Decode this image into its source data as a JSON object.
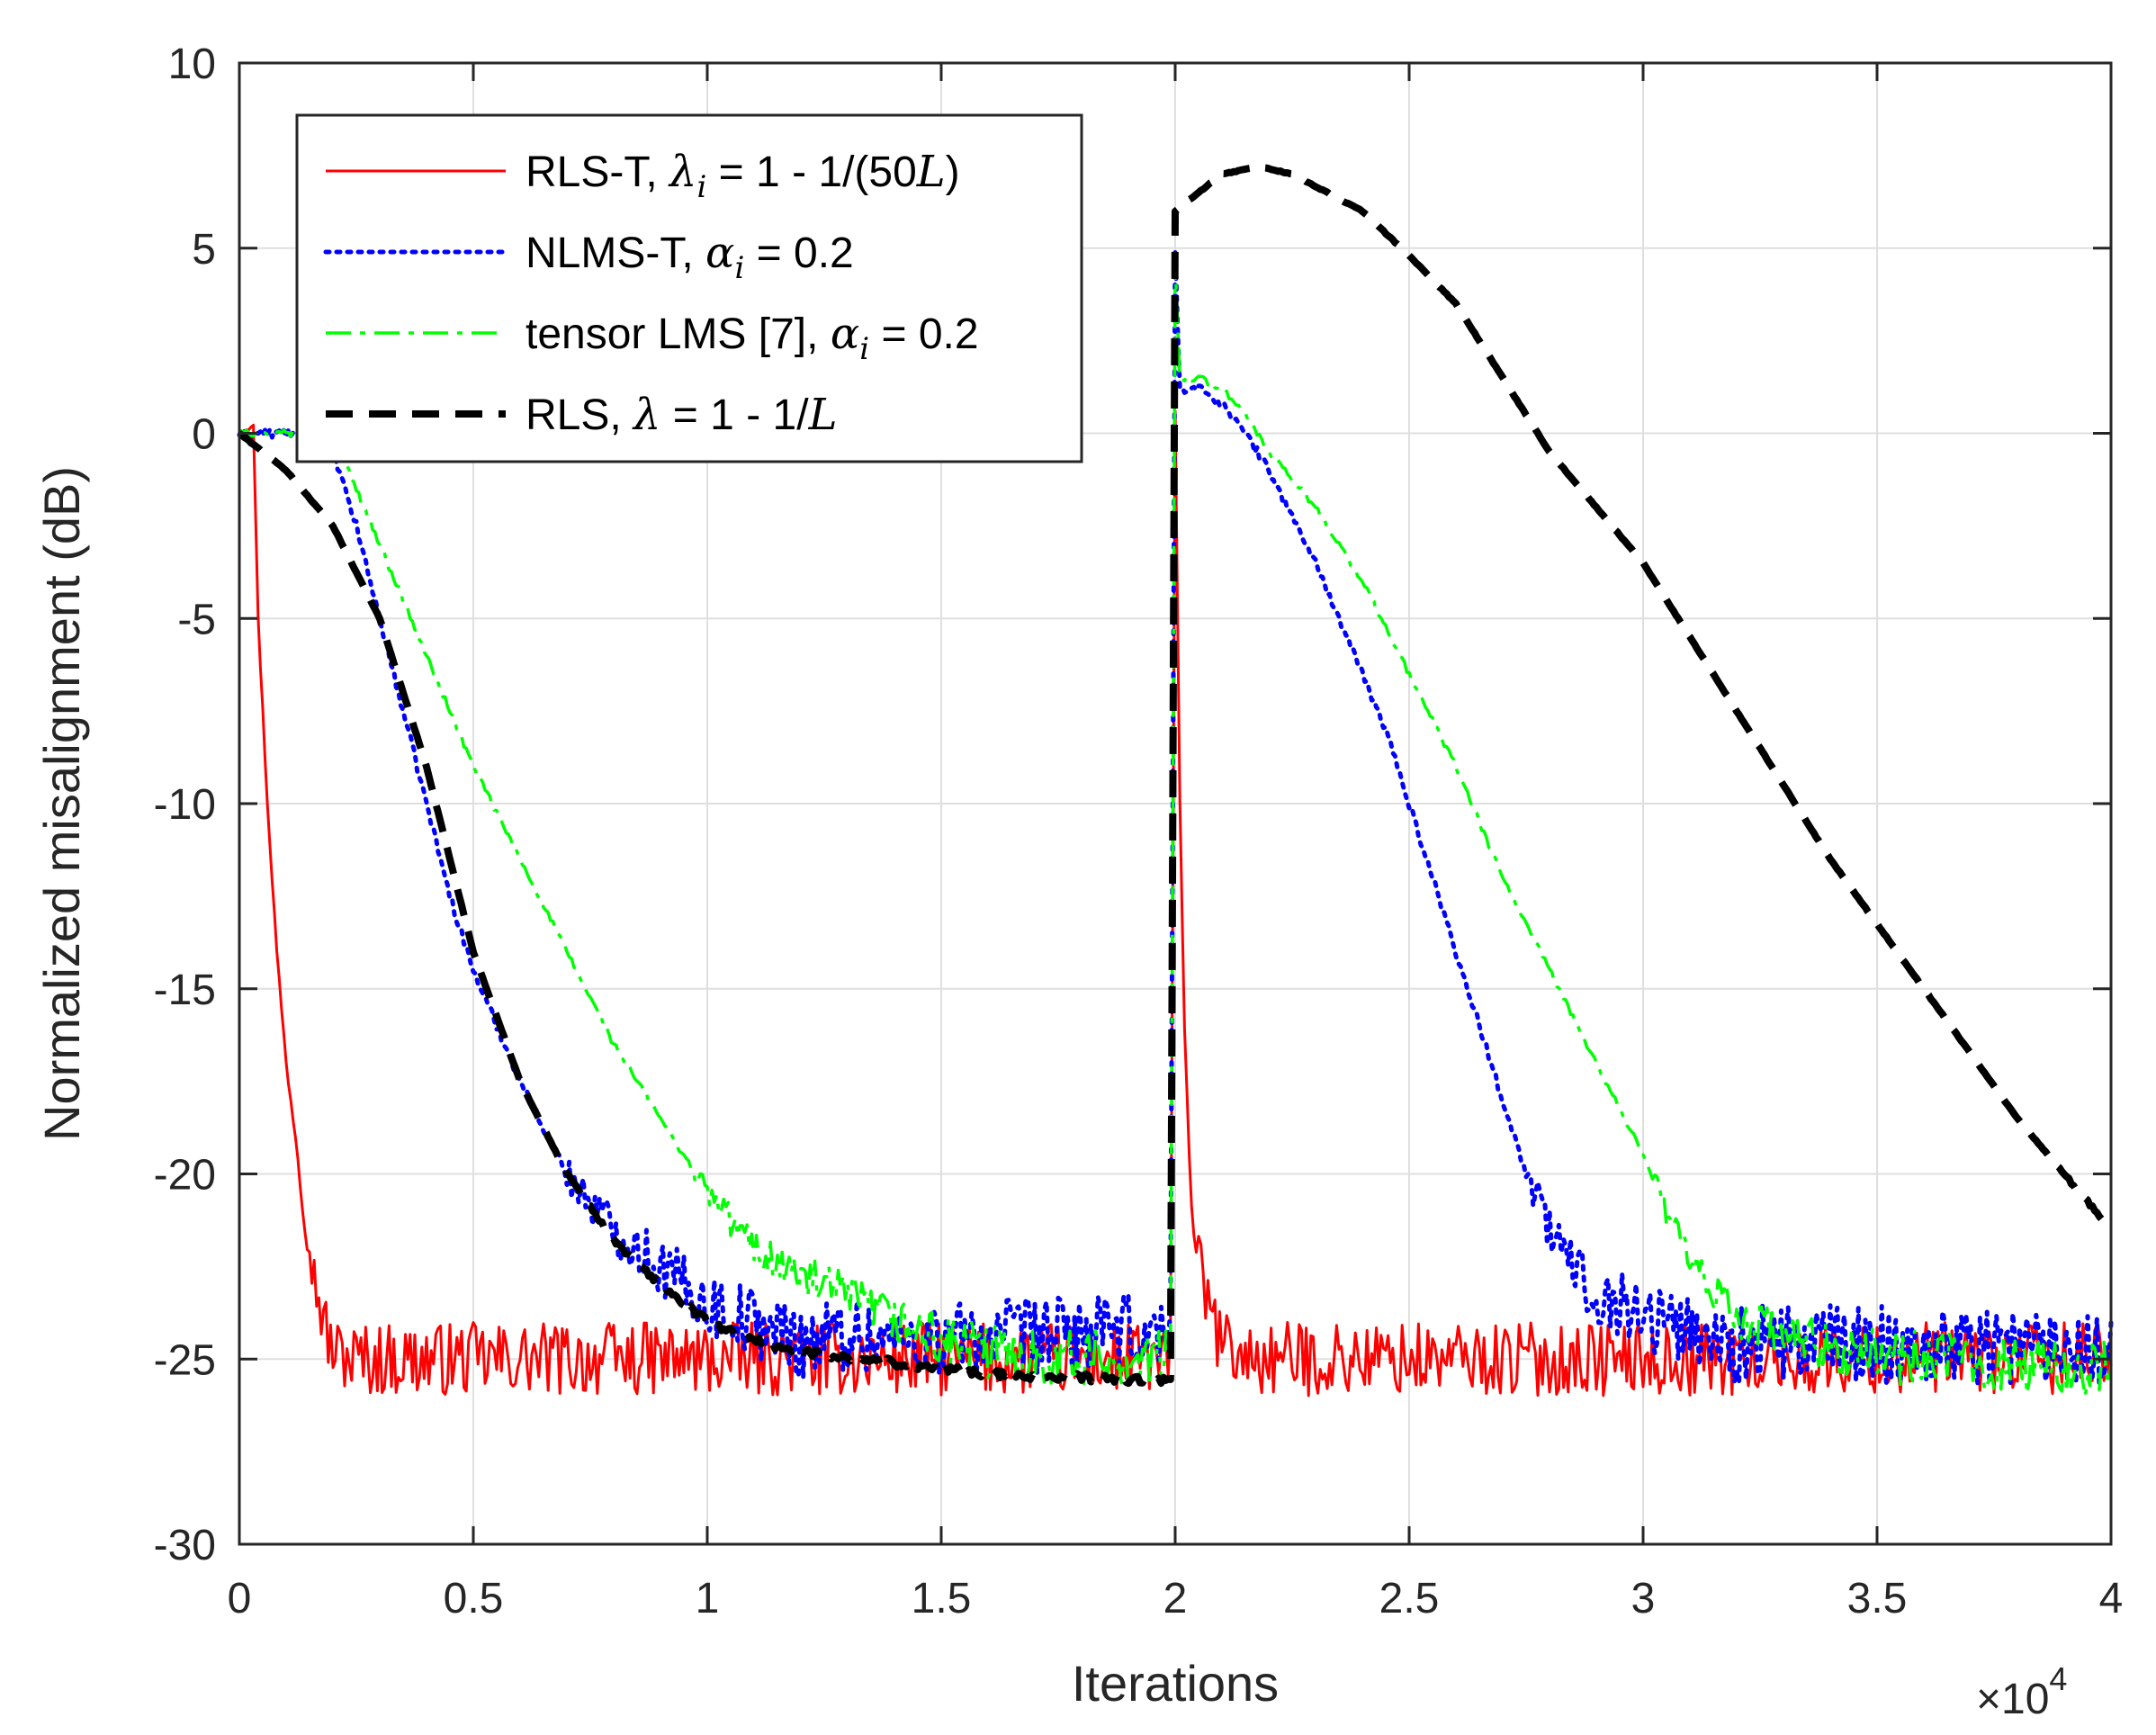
{
  "chart_data": {
    "type": "line",
    "title": "",
    "xlabel": "Iterations",
    "ylabel": "Normalized misalignment (dB)",
    "x_multiplier": {
      "prefix": "×10",
      "exponent": "4"
    },
    "xlim": [
      0,
      4
    ],
    "ylim": [
      -30,
      10
    ],
    "grid": true,
    "legend_position": "top-left",
    "xticks": [
      0,
      0.5,
      1,
      1.5,
      2,
      2.5,
      3,
      3.5,
      4
    ],
    "xtick_labels": [
      "0",
      "0.5",
      "1",
      "1.5",
      "2",
      "2.5",
      "3",
      "3.5",
      "4"
    ],
    "yticks": [
      10,
      5,
      0,
      -5,
      -10,
      -15,
      -20,
      -25,
      -30
    ],
    "ytick_labels": [
      "10",
      "5",
      "0",
      "-5",
      "-10",
      "-15",
      "-20",
      "-25",
      "-30"
    ],
    "series": [
      {
        "name": "RLS-T",
        "legend": {
          "pre": "RLS-T, ",
          "sym": "λ",
          "sub": "i",
          "post": " = 1 - 1/(50",
          "var": "L",
          "end": ")"
        },
        "color": "#ff0000",
        "style": "solid",
        "x": [
          0,
          0.03,
          0.04,
          0.06,
          0.08,
          0.1,
          0.12,
          0.14,
          0.16,
          0.18,
          0.2,
          0.25,
          0.3,
          0.5,
          1.0,
          1.5,
          1.99,
          2.0,
          2.01,
          2.02,
          2.03,
          2.04,
          2.06,
          2.08,
          2.1,
          2.15,
          2.2,
          2.5,
          3.0,
          3.5,
          4.0
        ],
        "y": [
          0,
          0.3,
          -5,
          -10,
          -14,
          -17,
          -19,
          -21,
          -22.8,
          -24,
          -24.8,
          -25,
          -25,
          -25,
          -25,
          -25,
          -25,
          0.5,
          -10,
          -16,
          -19.5,
          -21.5,
          -23,
          -24,
          -24.6,
          -25,
          -25,
          -25,
          -25,
          -25,
          -25
        ],
        "noise": 0.45
      },
      {
        "name": "NLMS-T",
        "legend": {
          "pre": "NLMS-T, ",
          "sym": "α",
          "sub": "i",
          "post": " = 0.2",
          "var": "",
          "end": ""
        },
        "color": "#0000ff",
        "style": "dotted",
        "x": [
          0,
          0.18,
          0.2,
          0.25,
          0.3,
          0.35,
          0.4,
          0.45,
          0.5,
          0.55,
          0.6,
          0.7,
          0.8,
          0.9,
          1.0,
          1.1,
          1.2,
          1.3,
          1.4,
          1.6,
          1.8,
          1.99,
          2.0,
          2.01,
          2.03,
          2.05,
          2.08,
          2.1,
          2.15,
          2.2,
          2.3,
          2.4,
          2.45,
          2.5,
          2.55,
          2.6,
          2.65,
          2.7,
          2.75,
          2.8,
          2.85,
          2.9,
          3.0,
          3.1,
          3.2,
          3.4,
          3.6,
          3.8,
          4.0
        ],
        "y": [
          0,
          0,
          -0.5,
          -2.5,
          -5,
          -7.5,
          -10,
          -12.5,
          -14.5,
          -16,
          -17.5,
          -20,
          -21.5,
          -22.5,
          -23.5,
          -24,
          -24.5,
          -24.3,
          -24.5,
          -24.4,
          -24.3,
          -24.3,
          5,
          1.2,
          1.2,
          1.2,
          1.0,
          0.8,
          0,
          -1,
          -3.5,
          -6.5,
          -8,
          -10,
          -12,
          -14,
          -16,
          -18,
          -20,
          -21.5,
          -22.5,
          -23.2,
          -23.8,
          -24.2,
          -24.6,
          -24.6,
          -24.6,
          -24.6,
          -24.6
        ],
        "noise": 0.5
      },
      {
        "name": "tensor LMS [7]",
        "legend": {
          "pre": "tensor LMS [7], ",
          "sym": "α",
          "sub": "i",
          "post": " = 0.2",
          "var": "",
          "end": ""
        },
        "color": "#00ff00",
        "style": "dashdot",
        "x": [
          0,
          0.2,
          0.3,
          0.35,
          0.4,
          0.45,
          0.5,
          0.6,
          0.7,
          0.8,
          0.9,
          1.0,
          1.1,
          1.2,
          1.3,
          1.4,
          1.5,
          1.6,
          1.8,
          1.99,
          2.0,
          2.01,
          2.03,
          2.05,
          2.1,
          2.15,
          2.2,
          2.3,
          2.4,
          2.5,
          2.6,
          2.7,
          2.8,
          2.9,
          3.0,
          3.05,
          3.1,
          3.15,
          3.2,
          3.3,
          3.4,
          3.6,
          3.8,
          4.0
        ],
        "y": [
          0,
          0,
          -3,
          -4.5,
          -6,
          -7.5,
          -9,
          -11.5,
          -14,
          -16.5,
          -18.5,
          -20.5,
          -22,
          -22.8,
          -23.3,
          -24,
          -24.5,
          -24.8,
          -25,
          -25,
          4.5,
          1.5,
          1.5,
          1.5,
          1.2,
          0.5,
          -0.5,
          -2,
          -4,
          -6.5,
          -9,
          -12,
          -14.5,
          -17,
          -19.5,
          -21,
          -22.5,
          -23.2,
          -23.8,
          -24.4,
          -24.8,
          -25,
          -25.2,
          -25.3
        ],
        "noise": 0.35
      },
      {
        "name": "RLS",
        "legend": {
          "pre": "RLS, ",
          "sym": "λ",
          "sub": "",
          "post": " = 1 - 1/",
          "var": "L",
          "end": ""
        },
        "color": "#000000",
        "style": "dashed",
        "x": [
          0,
          0.1,
          0.2,
          0.3,
          0.4,
          0.5,
          0.6,
          0.7,
          0.8,
          0.9,
          1.0,
          1.1,
          1.2,
          1.4,
          1.6,
          1.8,
          1.99,
          2.0,
          2.05,
          2.1,
          2.18,
          2.25,
          2.4,
          2.5,
          2.6,
          2.8,
          3.0,
          3.2,
          3.4,
          3.6,
          3.8,
          4.0
        ],
        "y": [
          0,
          -1,
          -2.5,
          -5,
          -9,
          -14,
          -17.5,
          -20,
          -21.8,
          -23,
          -24,
          -24.5,
          -24.8,
          -25.1,
          -25.4,
          -25.5,
          -25.6,
          6,
          6.5,
          7,
          7.2,
          7,
          6,
          4.8,
          3.5,
          -0.5,
          -3.5,
          -7.5,
          -11.5,
          -15,
          -18.5,
          -21.5
        ],
        "noise": 0.05
      }
    ]
  }
}
